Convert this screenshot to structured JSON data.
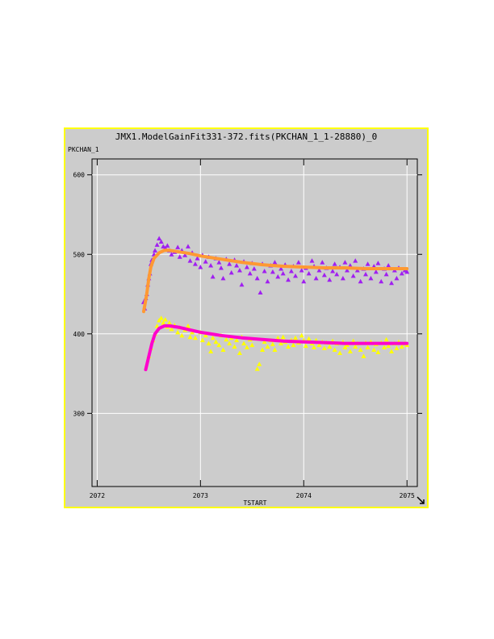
{
  "chart_data": {
    "type": "scatter",
    "title": "JMX1.ModelGainFit331-372.fits(PKCHAN_1_1-28880)_0",
    "xlabel": "TSTART",
    "ylabel": "PKCHAN_1",
    "xlim": [
      2071.95,
      2075.1
    ],
    "ylim": [
      208,
      620
    ],
    "x_ticks": [
      2072,
      2073,
      2074,
      2075
    ],
    "y_ticks": [
      300,
      400,
      500,
      600
    ],
    "grid": true,
    "series": [
      {
        "kind": "scatter-triangles",
        "color": "#a020f0",
        "points": [
          [
            2072.45,
            440
          ],
          [
            2072.46,
            432
          ],
          [
            2072.47,
            445
          ],
          [
            2072.48,
            450
          ],
          [
            2072.49,
            462
          ],
          [
            2072.5,
            470
          ],
          [
            2072.51,
            476
          ],
          [
            2072.52,
            488
          ],
          [
            2072.53,
            493
          ],
          [
            2072.55,
            500
          ],
          [
            2072.56,
            505
          ],
          [
            2072.58,
            512
          ],
          [
            2072.6,
            520
          ],
          [
            2072.62,
            516
          ],
          [
            2072.64,
            510
          ],
          [
            2072.66,
            508
          ],
          [
            2072.68,
            511
          ],
          [
            2072.7,
            505
          ],
          [
            2072.72,
            500
          ],
          [
            2072.75,
            503
          ],
          [
            2072.78,
            509
          ],
          [
            2072.8,
            497
          ],
          [
            2072.82,
            505
          ],
          [
            2072.85,
            499
          ],
          [
            2072.88,
            510
          ],
          [
            2072.9,
            492
          ],
          [
            2072.92,
            502
          ],
          [
            2072.95,
            488
          ],
          [
            2072.97,
            495
          ],
          [
            2073.0,
            484
          ],
          [
            2073.02,
            499
          ],
          [
            2073.05,
            491
          ],
          [
            2073.08,
            497
          ],
          [
            2073.1,
            486
          ],
          [
            2073.12,
            472
          ],
          [
            2073.15,
            495
          ],
          [
            2073.18,
            490
          ],
          [
            2073.2,
            483
          ],
          [
            2073.22,
            470
          ],
          [
            2073.25,
            494
          ],
          [
            2073.28,
            488
          ],
          [
            2073.3,
            477
          ],
          [
            2073.33,
            493
          ],
          [
            2073.35,
            486
          ],
          [
            2073.38,
            480
          ],
          [
            2073.4,
            462
          ],
          [
            2073.42,
            491
          ],
          [
            2073.45,
            484
          ],
          [
            2073.48,
            476
          ],
          [
            2073.5,
            489
          ],
          [
            2073.52,
            482
          ],
          [
            2073.55,
            470
          ],
          [
            2073.58,
            452
          ],
          [
            2073.6,
            488
          ],
          [
            2073.62,
            479
          ],
          [
            2073.65,
            466
          ],
          [
            2073.68,
            486
          ],
          [
            2073.7,
            478
          ],
          [
            2073.72,
            490
          ],
          [
            2073.75,
            472
          ],
          [
            2073.78,
            482
          ],
          [
            2073.8,
            476
          ],
          [
            2073.82,
            487
          ],
          [
            2073.85,
            468
          ],
          [
            2073.88,
            479
          ],
          [
            2073.9,
            485
          ],
          [
            2073.92,
            473
          ],
          [
            2073.95,
            490
          ],
          [
            2073.98,
            480
          ],
          [
            2074.0,
            466
          ],
          [
            2074.02,
            483
          ],
          [
            2074.05,
            476
          ],
          [
            2074.08,
            492
          ],
          [
            2074.1,
            485
          ],
          [
            2074.12,
            470
          ],
          [
            2074.15,
            480
          ],
          [
            2074.18,
            490
          ],
          [
            2074.2,
            474
          ],
          [
            2074.22,
            483
          ],
          [
            2074.25,
            468
          ],
          [
            2074.28,
            479
          ],
          [
            2074.3,
            488
          ],
          [
            2074.32,
            475
          ],
          [
            2074.35,
            484
          ],
          [
            2074.38,
            470
          ],
          [
            2074.4,
            490
          ],
          [
            2074.42,
            480
          ],
          [
            2074.45,
            486
          ],
          [
            2074.48,
            473
          ],
          [
            2074.5,
            492
          ],
          [
            2074.52,
            480
          ],
          [
            2074.55,
            466
          ],
          [
            2074.58,
            482
          ],
          [
            2074.6,
            475
          ],
          [
            2074.62,
            488
          ],
          [
            2074.65,
            470
          ],
          [
            2074.68,
            485
          ],
          [
            2074.7,
            478
          ],
          [
            2074.72,
            489
          ],
          [
            2074.75,
            466
          ],
          [
            2074.78,
            482
          ],
          [
            2074.8,
            475
          ],
          [
            2074.82,
            486
          ],
          [
            2074.85,
            464
          ],
          [
            2074.88,
            480
          ],
          [
            2074.9,
            470
          ],
          [
            2074.92,
            483
          ],
          [
            2074.95,
            476
          ],
          [
            2074.98,
            480
          ],
          [
            2075.0,
            478
          ]
        ]
      },
      {
        "kind": "scatter-triangles",
        "color": "#ffff00",
        "points": [
          [
            2072.5,
            372
          ],
          [
            2072.52,
            382
          ],
          [
            2072.54,
            392
          ],
          [
            2072.56,
            400
          ],
          [
            2072.58,
            410
          ],
          [
            2072.6,
            417
          ],
          [
            2072.62,
            420
          ],
          [
            2072.64,
            414
          ],
          [
            2072.66,
            418
          ],
          [
            2072.68,
            409
          ],
          [
            2072.7,
            414
          ],
          [
            2072.72,
            406
          ],
          [
            2072.75,
            411
          ],
          [
            2072.78,
            402
          ],
          [
            2072.8,
            408
          ],
          [
            2072.82,
            398
          ],
          [
            2072.85,
            405
          ],
          [
            2072.88,
            410
          ],
          [
            2072.9,
            396
          ],
          [
            2072.92,
            402
          ],
          [
            2072.95,
            395
          ],
          [
            2073.0,
            402
          ],
          [
            2073.02,
            392
          ],
          [
            2073.05,
            398
          ],
          [
            2073.08,
            388
          ],
          [
            2073.1,
            378
          ],
          [
            2073.12,
            395
          ],
          [
            2073.15,
            390
          ],
          [
            2073.18,
            386
          ],
          [
            2073.2,
            398
          ],
          [
            2073.22,
            380
          ],
          [
            2073.25,
            393
          ],
          [
            2073.28,
            388
          ],
          [
            2073.3,
            395
          ],
          [
            2073.33,
            384
          ],
          [
            2073.35,
            392
          ],
          [
            2073.38,
            376
          ],
          [
            2073.4,
            396
          ],
          [
            2073.42,
            388
          ],
          [
            2073.45,
            383
          ],
          [
            2073.48,
            393
          ],
          [
            2073.5,
            386
          ],
          [
            2073.55,
            356
          ],
          [
            2073.57,
            362
          ],
          [
            2073.6,
            380
          ],
          [
            2073.62,
            390
          ],
          [
            2073.65,
            384
          ],
          [
            2073.68,
            392
          ],
          [
            2073.7,
            387
          ],
          [
            2073.72,
            380
          ],
          [
            2073.75,
            395
          ],
          [
            2073.78,
            388
          ],
          [
            2073.8,
            396
          ],
          [
            2073.82,
            390
          ],
          [
            2073.85,
            384
          ],
          [
            2073.88,
            392
          ],
          [
            2073.9,
            386
          ],
          [
            2073.92,
            395
          ],
          [
            2073.95,
            389
          ],
          [
            2073.98,
            398
          ],
          [
            2074.0,
            392
          ],
          [
            2074.02,
            385
          ],
          [
            2074.05,
            394
          ],
          [
            2074.08,
            388
          ],
          [
            2074.1,
            383
          ],
          [
            2074.12,
            392
          ],
          [
            2074.15,
            386
          ],
          [
            2074.18,
            390
          ],
          [
            2074.2,
            382
          ],
          [
            2074.22,
            389
          ],
          [
            2074.25,
            384
          ],
          [
            2074.28,
            391
          ],
          [
            2074.3,
            380
          ],
          [
            2074.32,
            388
          ],
          [
            2074.35,
            376
          ],
          [
            2074.38,
            390
          ],
          [
            2074.4,
            383
          ],
          [
            2074.42,
            386
          ],
          [
            2074.45,
            378
          ],
          [
            2074.48,
            391
          ],
          [
            2074.5,
            384
          ],
          [
            2074.52,
            388
          ],
          [
            2074.55,
            380
          ],
          [
            2074.58,
            372
          ],
          [
            2074.6,
            389
          ],
          [
            2074.62,
            383
          ],
          [
            2074.65,
            390
          ],
          [
            2074.68,
            380
          ],
          [
            2074.7,
            387
          ],
          [
            2074.72,
            377
          ],
          [
            2074.75,
            389
          ],
          [
            2074.78,
            383
          ],
          [
            2074.8,
            393
          ],
          [
            2074.82,
            385
          ],
          [
            2074.85,
            378
          ],
          [
            2074.88,
            388
          ],
          [
            2074.9,
            382
          ],
          [
            2074.92,
            390
          ],
          [
            2074.95,
            384
          ],
          [
            2074.98,
            388
          ],
          [
            2075.0,
            386
          ]
        ]
      },
      {
        "kind": "fit-line",
        "color": "#ff9933",
        "points": [
          [
            2072.45,
            428
          ],
          [
            2072.48,
            450
          ],
          [
            2072.5,
            470
          ],
          [
            2072.52,
            484
          ],
          [
            2072.55,
            495
          ],
          [
            2072.6,
            502
          ],
          [
            2072.65,
            505
          ],
          [
            2072.7,
            505
          ],
          [
            2072.8,
            503
          ],
          [
            2072.9,
            501
          ],
          [
            2073.0,
            498
          ],
          [
            2073.2,
            494
          ],
          [
            2073.4,
            490
          ],
          [
            2073.6,
            487
          ],
          [
            2073.8,
            485
          ],
          [
            2074.0,
            484
          ],
          [
            2074.2,
            483
          ],
          [
            2074.4,
            483
          ],
          [
            2074.6,
            482
          ],
          [
            2074.8,
            482
          ],
          [
            2075.0,
            482
          ]
        ]
      },
      {
        "kind": "fit-line",
        "color": "#ff00cc",
        "points": [
          [
            2072.47,
            355
          ],
          [
            2072.5,
            372
          ],
          [
            2072.53,
            388
          ],
          [
            2072.56,
            400
          ],
          [
            2072.6,
            407
          ],
          [
            2072.65,
            410
          ],
          [
            2072.7,
            410
          ],
          [
            2072.8,
            408
          ],
          [
            2072.9,
            405
          ],
          [
            2073.0,
            402
          ],
          [
            2073.2,
            398
          ],
          [
            2073.4,
            395
          ],
          [
            2073.6,
            393
          ],
          [
            2073.8,
            391
          ],
          [
            2074.0,
            390
          ],
          [
            2074.2,
            389
          ],
          [
            2074.4,
            388
          ],
          [
            2074.6,
            388
          ],
          [
            2074.8,
            388
          ],
          [
            2075.0,
            388
          ]
        ]
      }
    ]
  }
}
